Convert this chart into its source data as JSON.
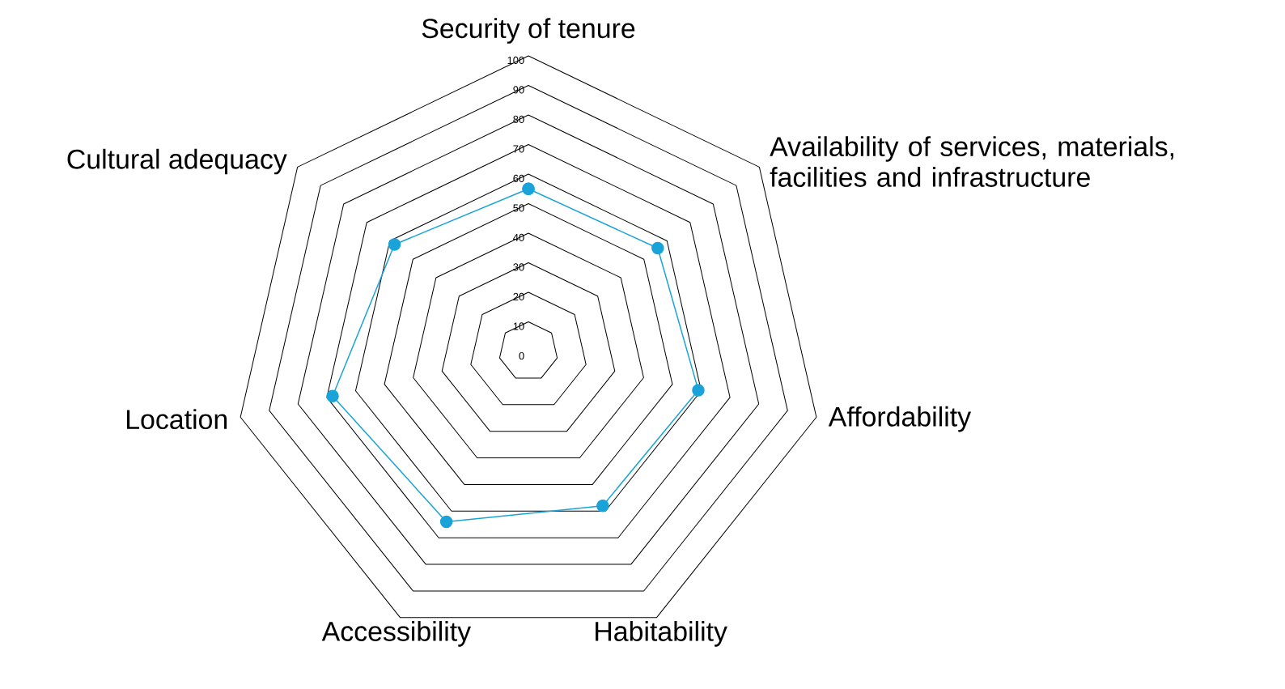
{
  "chart_data": {
    "type": "radar",
    "categories": [
      "Security of tenure",
      "Availability of services, materials, facilities and infrastructure",
      "Affordability",
      "Habitability",
      "Accessibility",
      "Location",
      "Cultural adequacy"
    ],
    "series": [
      {
        "color": "#1aa3d9",
        "values": [
          55,
          56,
          59,
          58,
          64,
          68,
          58
        ]
      }
    ],
    "ylim": [
      0,
      100
    ],
    "yticks": [
      0,
      10,
      20,
      30,
      40,
      50,
      60,
      70,
      80,
      90,
      100
    ],
    "grid": true,
    "marker": "circle"
  }
}
